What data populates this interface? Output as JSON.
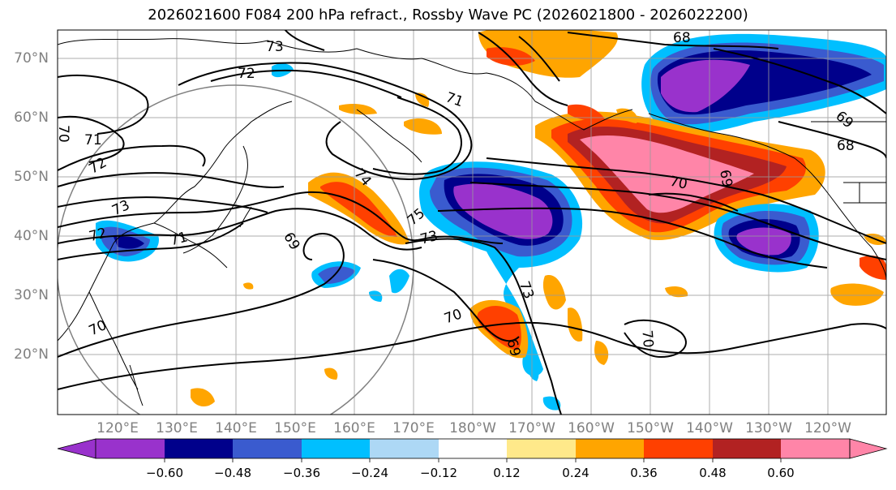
{
  "title": "2026021600 F084 200 hPa refract., Rossby Wave PC (2026021800 - 2026022200)",
  "latitude_labels": [
    "70°N",
    "60°N",
    "50°N",
    "40°N",
    "30°N",
    "20°N"
  ],
  "longitude_labels": [
    "120°E",
    "130°E",
    "140°E",
    "150°E",
    "160°E",
    "170°E",
    "180°W",
    "170°W",
    "160°W",
    "150°W",
    "140°W",
    "130°W",
    "120°W"
  ],
  "contour_labels": [
    "68",
    "69",
    "70",
    "71",
    "72",
    "73",
    "74",
    "75"
  ],
  "colorbar": {
    "tick_labels": [
      "−0.60",
      "−0.48",
      "−0.36",
      "−0.24",
      "−0.12",
      "0.12",
      "0.24",
      "0.36",
      "0.48",
      "0.60"
    ],
    "colors": [
      "#9932CC",
      "#00008B",
      "#3A5BCF",
      "#00BFFF",
      "#ADD8F5",
      "#FFFFFF",
      "#FFE98A",
      "#FFA500",
      "#FF4000",
      "#B22222",
      "#FF85A8"
    ]
  }
}
